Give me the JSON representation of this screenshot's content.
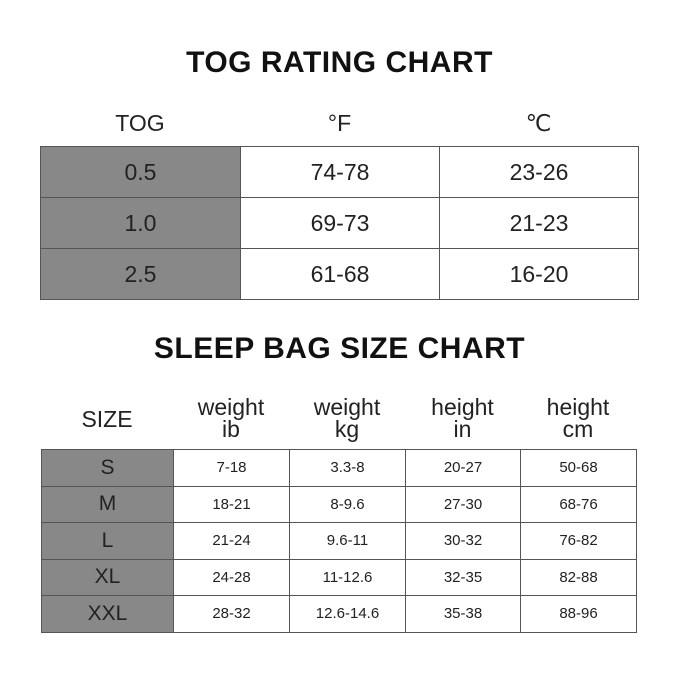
{
  "tog_chart": {
    "title": "TOG RATING CHART",
    "headers": [
      "TOG",
      "°F",
      "℃"
    ],
    "rows": [
      [
        "0.5",
        "74-78",
        "23-26"
      ],
      [
        "1.0",
        "69-73",
        "21-23"
      ],
      [
        "2.5",
        "61-68",
        "16-20"
      ]
    ]
  },
  "size_chart": {
    "title": "SLEEP BAG SIZE CHART",
    "headers": [
      {
        "l1": "SIZE",
        "l2": ""
      },
      {
        "l1": "weight",
        "l2": "ib"
      },
      {
        "l1": "weight",
        "l2": "kg"
      },
      {
        "l1": "height",
        "l2": "in"
      },
      {
        "l1": "height",
        "l2": "cm"
      }
    ],
    "rows": [
      [
        "S",
        "7-18",
        "3.3-8",
        "20-27",
        "50-68"
      ],
      [
        "M",
        "18-21",
        "8-9.6",
        "27-30",
        "68-76"
      ],
      [
        "L",
        "21-24",
        "9.6-11",
        "30-32",
        "76-82"
      ],
      [
        "XL",
        "24-28",
        "11-12.6",
        "32-35",
        "82-88"
      ],
      [
        "XXL",
        "28-32",
        "12.6-14.6",
        "35-38",
        "88-96"
      ]
    ]
  },
  "colors": {
    "key_cell": "#888888",
    "border": "#555555"
  }
}
